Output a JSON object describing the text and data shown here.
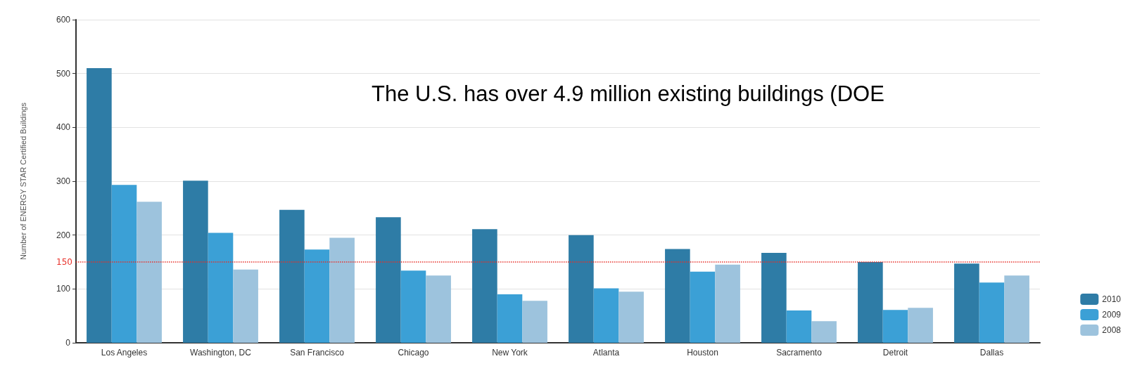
{
  "chart_data": {
    "type": "bar",
    "ylabel": "Number of ENERGY STAR Certified Buildings",
    "categories": [
      "Los Angeles",
      "Washington, DC",
      "San Francisco",
      "Chicago",
      "New York",
      "Atlanta",
      "Houston",
      "Sacramento",
      "Detroit",
      "Dallas"
    ],
    "series": [
      {
        "name": "2010",
        "color": "#2e7ca6",
        "values": [
          510,
          301,
          247,
          233,
          211,
          200,
          174,
          167,
          150,
          147
        ]
      },
      {
        "name": "2009",
        "color": "#3ba0d6",
        "values": [
          293,
          204,
          173,
          134,
          90,
          101,
          132,
          60,
          61,
          112
        ]
      },
      {
        "name": "2008",
        "color": "#9dc3dd",
        "values": [
          262,
          136,
          195,
          125,
          78,
          95,
          145,
          40,
          65,
          125
        ]
      }
    ],
    "ylim": [
      0,
      600
    ],
    "yticks": [
      0,
      100,
      200,
      300,
      400,
      500,
      600
    ],
    "grid": "y",
    "legend": "bottom right",
    "ref_lines": [
      {
        "axis": "y",
        "value": 150,
        "label": "150",
        "color": "#e8312a",
        "line_style": "dotted"
      }
    ],
    "annotations": [
      "The U.S. has over 4.9 million existing buildings (DOE"
    ]
  }
}
